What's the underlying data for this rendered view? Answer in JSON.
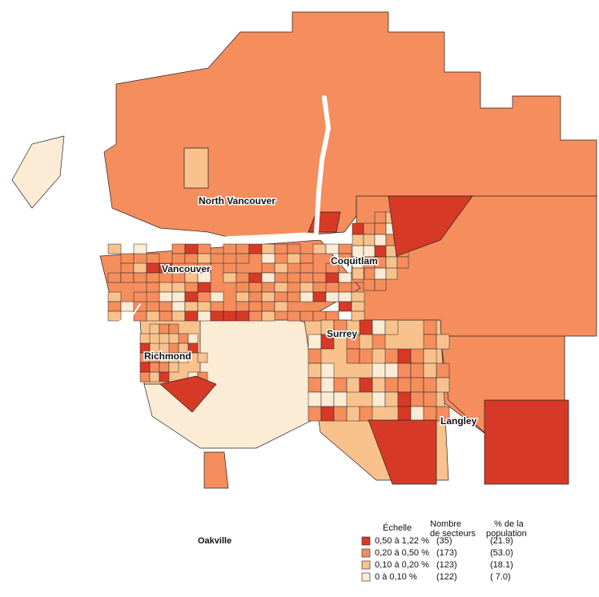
{
  "map": {
    "labels": [
      "North Vancouver",
      "Coquitlam",
      "Vancouver",
      "Surrey",
      "Richmond",
      "Langley"
    ],
    "title": "Oakville",
    "legend": {
      "scale_header": "Échelle",
      "count_header": [
        "Nombre",
        "de secteurs"
      ],
      "share_header": [
        "% de la",
        "population"
      ],
      "rows": [
        {
          "range": "0,50 à 1,22 %",
          "count": "(35)",
          "share": "(21.9)",
          "color": "#d63a27"
        },
        {
          "range": "0,20 à 0,50 %",
          "count": "(173)",
          "share": "(53.0)",
          "color": "#f58d5c"
        },
        {
          "range": "0,10 à 0,20 %",
          "count": "(123)",
          "share": "(18.1)",
          "color": "#f9c28d"
        },
        {
          "range": "0    à 0,10 %",
          "count": "(122)",
          "share": "( 7.0)",
          "color": "#fdecd5"
        }
      ]
    }
  }
}
